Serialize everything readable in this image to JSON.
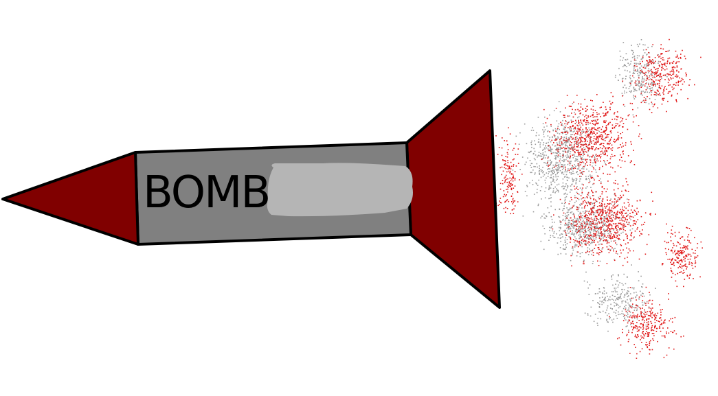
{
  "label": "BOMB",
  "colors": {
    "nose": "#800000",
    "tail": "#800000",
    "body": "#808080",
    "label_patch": "#b5b5b5",
    "outline": "#000000",
    "exhaust_red": "#e01414",
    "exhaust_grey": "#9a9a9a",
    "background": "#ffffff"
  }
}
